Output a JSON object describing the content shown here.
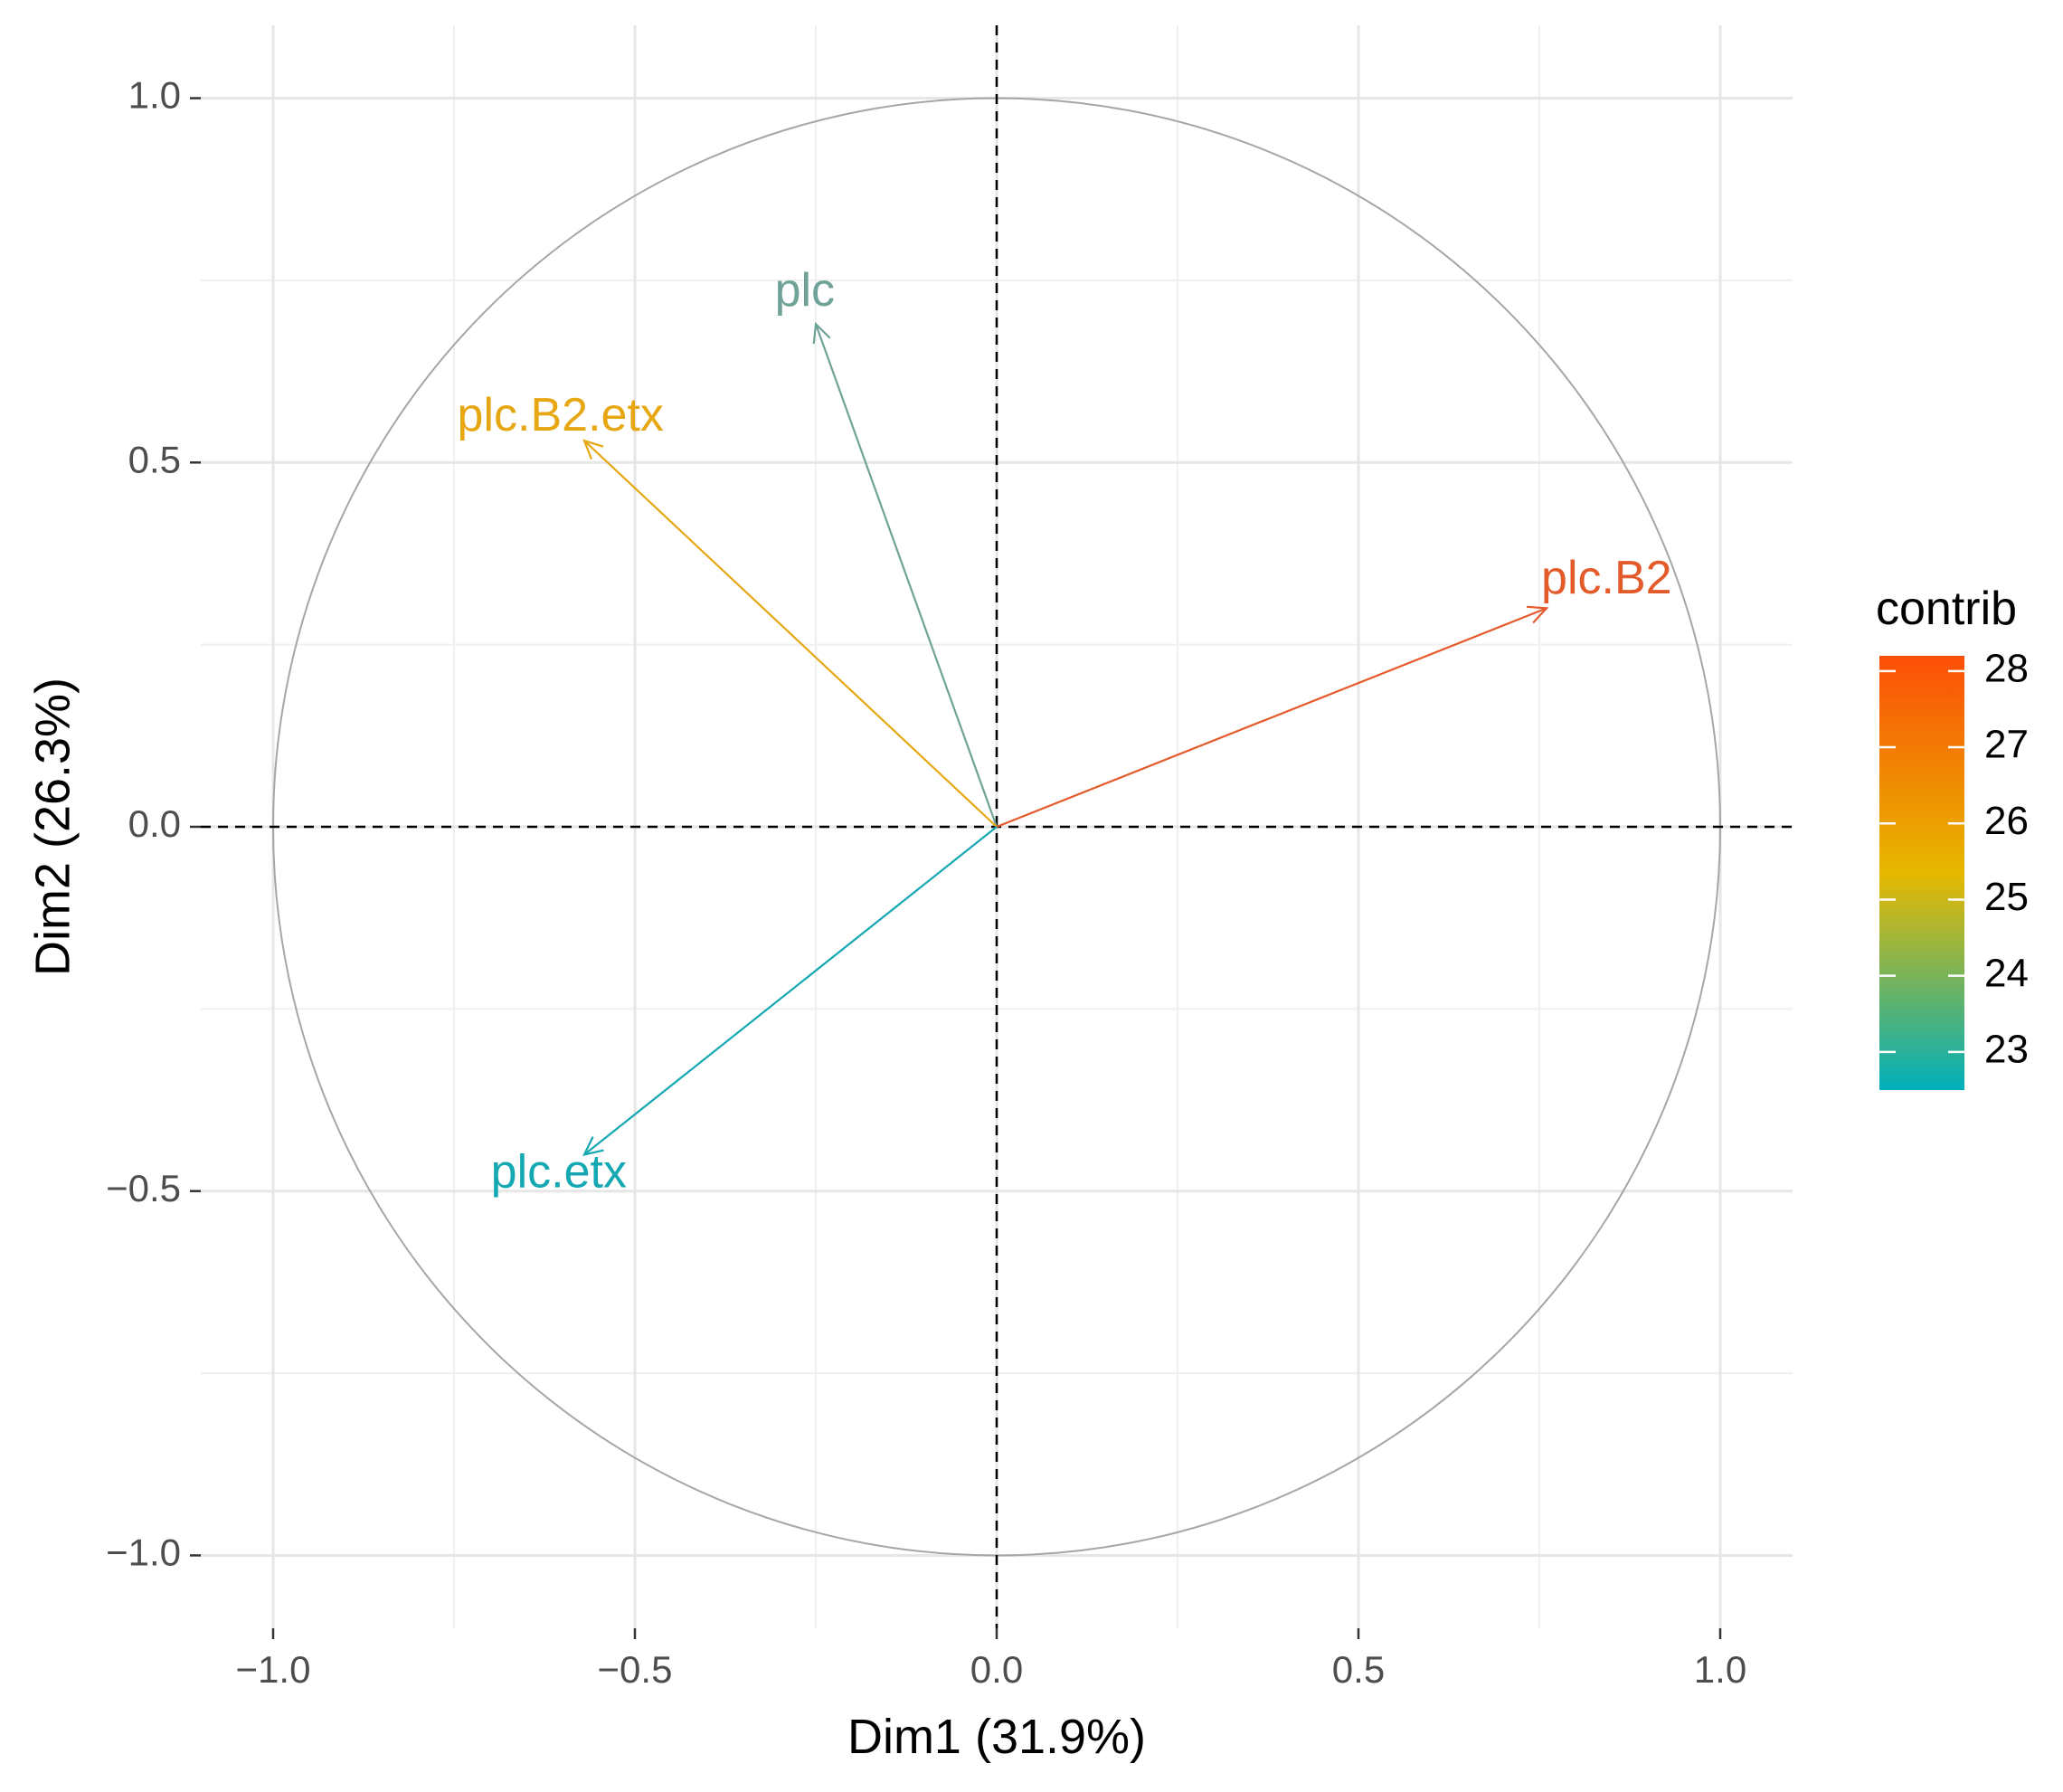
{
  "chart_data": {
    "type": "scatter",
    "subtype": "pca-variable-correlation-circle",
    "title": "",
    "xlabel": "Dim1 (31.9%)",
    "ylabel": "Dim2 (26.3%)",
    "xlim": [
      -1.1,
      1.1
    ],
    "ylim": [
      -1.1,
      1.1
    ],
    "x_ticks": [
      -1.0,
      -0.5,
      0.0,
      0.5,
      1.0
    ],
    "x_tick_labels": [
      "−1.0",
      "−0.5",
      "0.0",
      "0.5",
      "1.0"
    ],
    "y_ticks": [
      -1.0,
      -0.5,
      0.0,
      0.5,
      1.0
    ],
    "y_tick_labels": [
      "−1.0",
      "−0.5",
      "0.0",
      "0.5",
      "1.0"
    ],
    "grid": true,
    "unit_circle": true,
    "reference_lines": "dashed at x=0 and y=0",
    "variables": [
      {
        "name": "plc",
        "x": -0.25,
        "y": 0.69,
        "contrib": 24.1,
        "color": "#6fa398"
      },
      {
        "name": "plc.B2.etx",
        "x": -0.57,
        "y": 0.53,
        "contrib": 25.6,
        "color": "#e6a713"
      },
      {
        "name": "plc.B2",
        "x": 0.76,
        "y": 0.3,
        "contrib": 27.6,
        "color": "#e35b2a"
      },
      {
        "name": "plc.etx",
        "x": -0.57,
        "y": -0.45,
        "contrib": 22.8,
        "color": "#14a8b2"
      }
    ],
    "legend": {
      "title": "contrib",
      "placement": "right",
      "min": 22.5,
      "max": 28.2,
      "ticks": [
        23,
        24,
        25,
        26,
        27,
        28
      ],
      "tick_labels": [
        "23",
        "24",
        "25",
        "26",
        "27",
        "28"
      ],
      "gradient_colors": [
        "#00afbb",
        "#e7b800",
        "#fc4e07"
      ]
    }
  }
}
